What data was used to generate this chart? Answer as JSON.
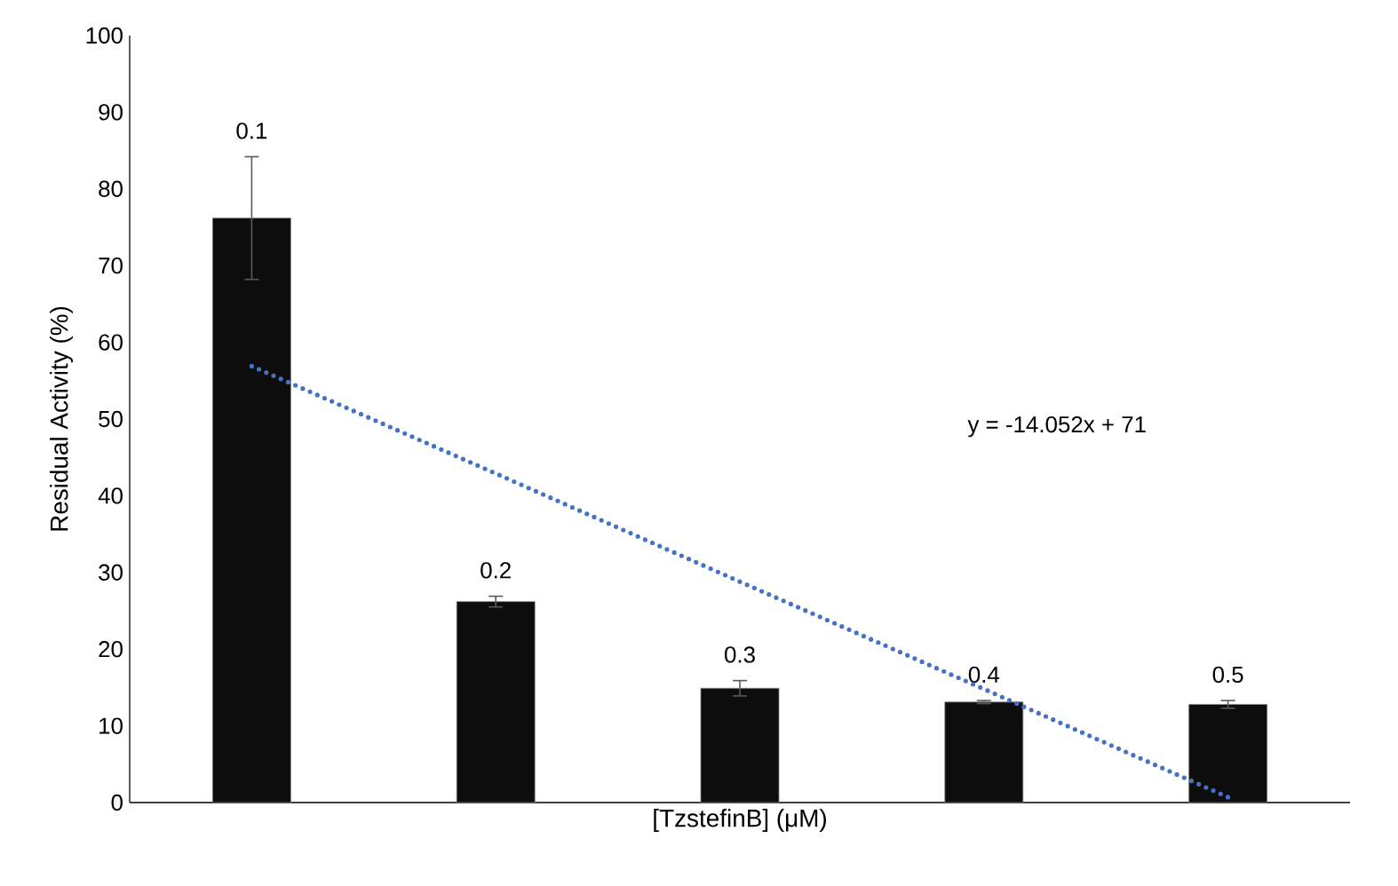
{
  "chart_data": {
    "type": "bar",
    "xlabel": "[TzstefinB] (μM)",
    "ylabel": "Residual Activity (%)",
    "categories": [
      "0.1",
      "0.2",
      "0.3",
      "0.4",
      "0.5"
    ],
    "series": [
      {
        "color": "#0d0d0d",
        "values": [
          76.2,
          26.2,
          14.9,
          13.1,
          12.8
        ],
        "errors": [
          8,
          0.7,
          1,
          0.2,
          0.5
        ]
      },
      {
        "type": "line",
        "color": "#4472c4",
        "line_style": "dotted",
        "x": [
          "0.1",
          "0.2",
          "0.3",
          "0.4",
          "0.5"
        ],
        "values": [
          56.9,
          42.9,
          28.8,
          14.8,
          0.7
        ]
      }
    ],
    "ylim": [
      0,
      100
    ],
    "yticks": [
      0,
      10,
      20,
      30,
      40,
      50,
      60,
      70,
      80,
      90,
      100
    ],
    "annotations": [
      "y = -14.052x + 71"
    ],
    "grid": false
  }
}
